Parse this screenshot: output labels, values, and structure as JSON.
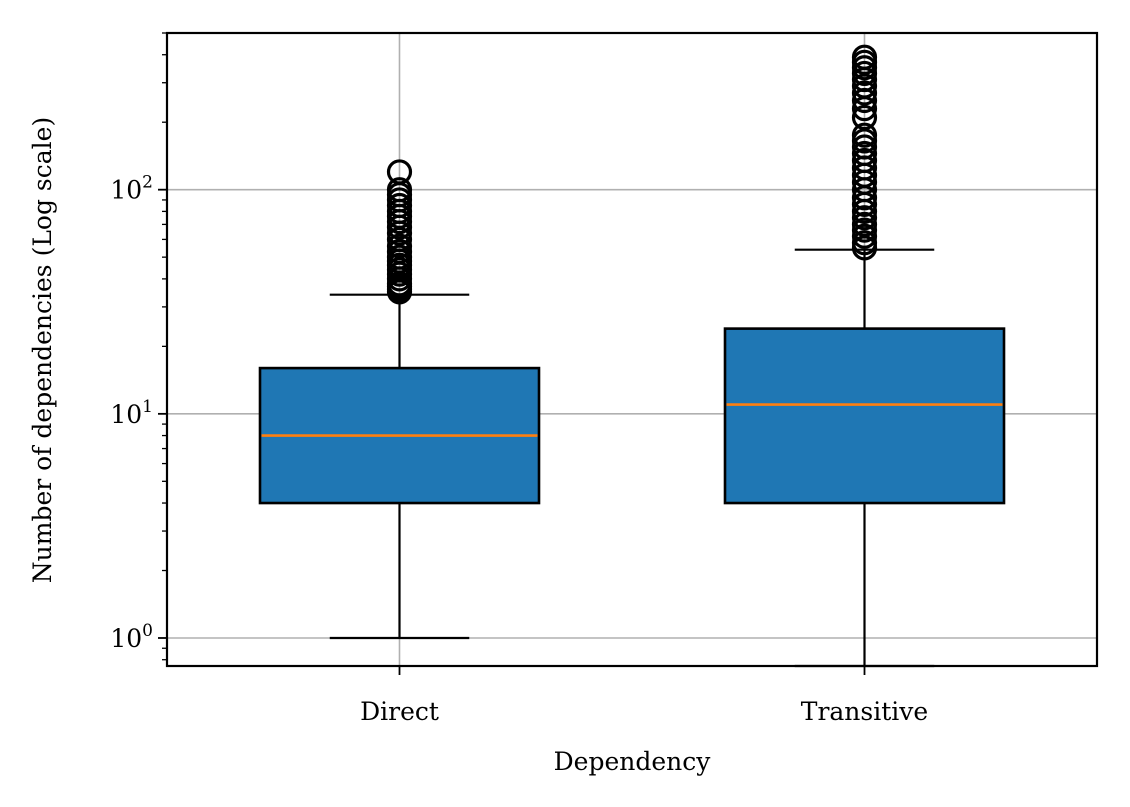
{
  "chart_data": {
    "type": "box",
    "xlabel": "Dependency",
    "ylabel": "Number of dependencies (Log scale)",
    "yscale": "log",
    "ylim": [
      0.75,
      500
    ],
    "grid": true,
    "y_ticks": [
      {
        "value": 1,
        "base": "10",
        "exp": "0"
      },
      {
        "value": 10,
        "base": "10",
        "exp": "1"
      },
      {
        "value": 100,
        "base": "10",
        "exp": "2"
      }
    ],
    "categories": [
      "Direct",
      "Transitive"
    ],
    "boxes": [
      {
        "name": "Direct",
        "whisker_low": 1,
        "q1": 4,
        "median": 8,
        "q3": 16,
        "whisker_high": 34,
        "outliers": [
          35,
          36,
          37,
          38,
          40,
          42,
          44,
          46,
          48,
          50,
          53,
          56,
          60,
          64,
          68,
          72,
          76,
          80,
          85,
          90,
          95,
          100,
          120
        ]
      },
      {
        "name": "Transitive",
        "whisker_low": 0.75,
        "q1": 4,
        "median": 11,
        "q3": 24,
        "whisker_high": 54,
        "outliers": [
          55,
          58,
          62,
          66,
          70,
          75,
          80,
          86,
          92,
          100,
          108,
          116,
          125,
          135,
          145,
          155,
          165,
          175,
          210,
          230,
          250,
          270,
          290,
          310,
          330,
          350,
          370,
          390
        ]
      }
    ],
    "colors": {
      "box_fill": "#1f77b4",
      "median": "#ff7f0e",
      "grid": "#b0b0b0"
    }
  }
}
